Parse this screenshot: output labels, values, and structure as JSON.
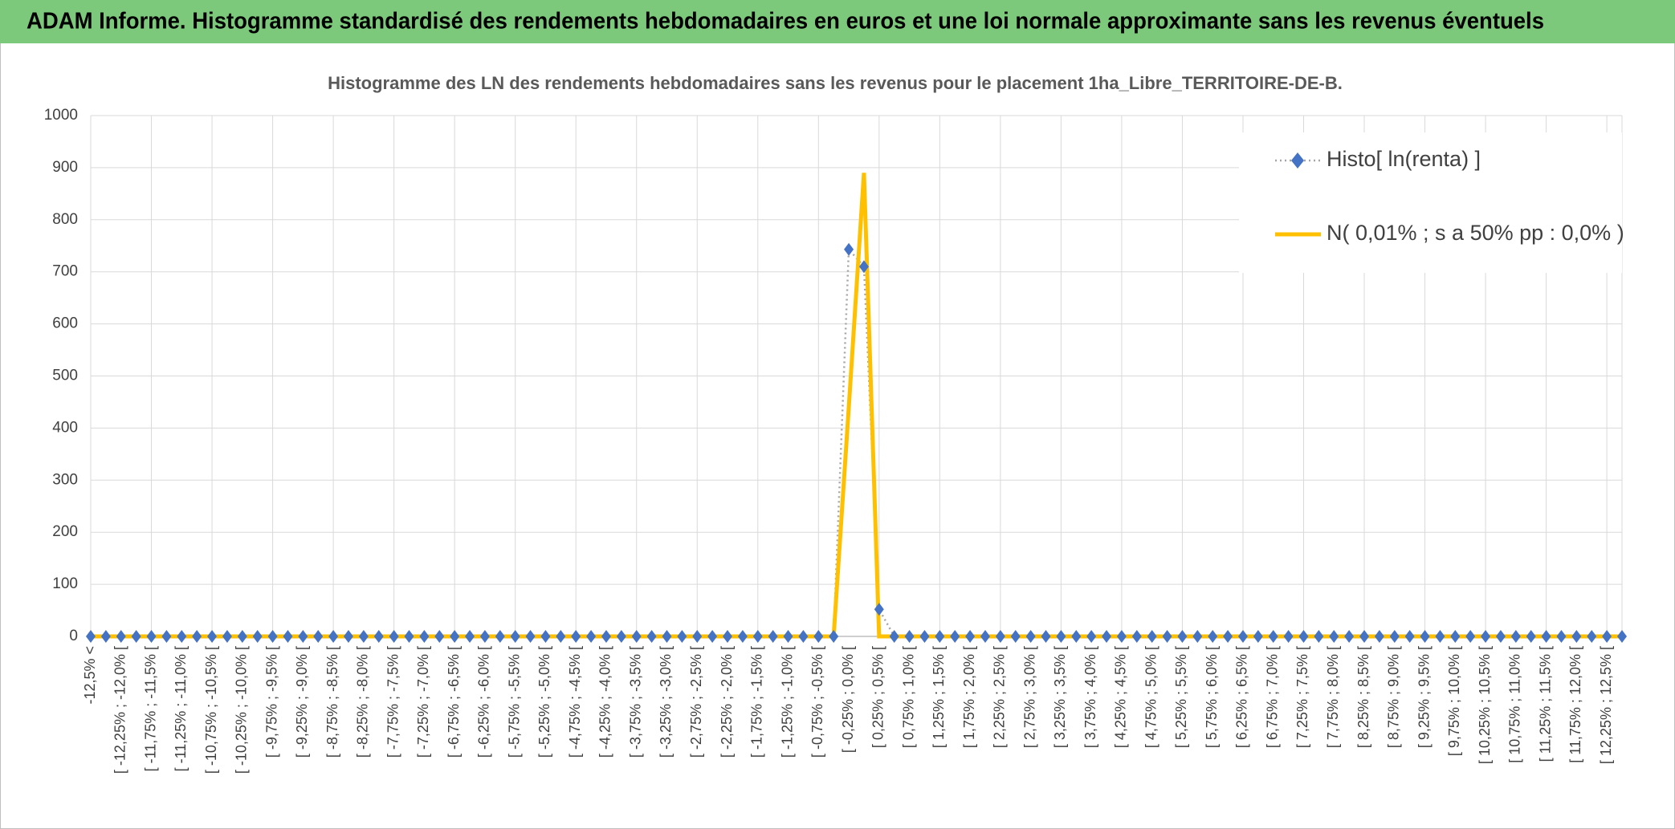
{
  "header": {
    "title": "ADAM Informe. Histogramme standardisé des rendements hebdomadaires en euros et une loi normale approximante sans les revenus éventuels"
  },
  "chart_data": {
    "type": "line",
    "title": "Histogramme des LN des rendements hebdomadaires sans les revenus pour le placement 1ha_Libre_TERRITOIRE-DE-B.",
    "categories": [
      "-12,5% <",
      null,
      "[ -12,25% ; -12,0% [",
      null,
      "[ -11,75% ; -11,5% [",
      null,
      "[ -11,25% ; -11,0% [",
      null,
      "[ -10,75% ; -10,5% [",
      null,
      "[ -10,25% ; -10,0% [",
      null,
      "[ -9,75% ; -9,5% [",
      null,
      "[ -9,25% ; -9,0% [",
      null,
      "[ -8,75% ; -8,5% [",
      null,
      "[ -8,25% ; -8,0% [",
      null,
      "[ -7,75% ; -7,5% [",
      null,
      "[ -7,25% ; -7,0% [",
      null,
      "[ -6,75% ; -6,5% [",
      null,
      "[ -6,25% ; -6,0% [",
      null,
      "[ -5,75% ; -5,5% [",
      null,
      "[ -5,25% ; -5,0% [",
      null,
      "[ -4,75% ; -4,5% [",
      null,
      "[ -4,25% ; -4,0% [",
      null,
      "[ -3,75% ; -3,5% [",
      null,
      "[ -3,25% ; -3,0% [",
      null,
      "[ -2,75% ; -2,5% [",
      null,
      "[ -2,25% ; -2,0% [",
      null,
      "[ -1,75% ; -1,5% [",
      null,
      "[ -1,25% ; -1,0% [",
      null,
      "[ -0,75% ; -0,5% [",
      null,
      "[ -0,25% ; 0,0% [",
      null,
      "[ 0,25% ; 0,5% [",
      null,
      "[ 0,75% ; 1,0% [",
      null,
      "[ 1,25% ; 1,5% [",
      null,
      "[ 1,75% ; 2,0% [",
      null,
      "[ 2,25% ; 2,5% [",
      null,
      "[ 2,75% ; 3,0% [",
      null,
      "[ 3,25% ; 3,5% [",
      null,
      "[ 3,75% ; 4,0% [",
      null,
      "[ 4,25% ; 4,5% [",
      null,
      "[ 4,75% ; 5,0% [",
      null,
      "[ 5,25% ; 5,5% [",
      null,
      "[ 5,75% ; 6,0% [",
      null,
      "[ 6,25% ; 6,5% [",
      null,
      "[ 6,75% ; 7,0% [",
      null,
      "[ 7,25% ; 7,5% [",
      null,
      "[ 7,75% ; 8,0% [",
      null,
      "[ 8,25% ; 8,5% [",
      null,
      "[ 8,75% ; 9,0% [",
      null,
      "[ 9,25% ; 9,5% [",
      null,
      "[ 9,75% ; 10,0% [",
      null,
      "[ 10,25% ; 10,5% [",
      null,
      "[ 10,75% ; 11,0% [",
      null,
      "[ 11,25% ; 11,5% [",
      null,
      "[ 11,75% ; 12,0% [",
      null,
      "[ 12,25% ; 12,5% [",
      null
    ],
    "series": [
      {
        "name": "Histo[ ln(renta) ]",
        "color": "#4472c4",
        "values": [
          0,
          0,
          0,
          0,
          0,
          0,
          0,
          0,
          0,
          0,
          0,
          0,
          0,
          0,
          0,
          0,
          0,
          0,
          0,
          0,
          0,
          0,
          0,
          0,
          0,
          0,
          0,
          0,
          0,
          0,
          0,
          0,
          0,
          0,
          0,
          0,
          0,
          0,
          0,
          0,
          0,
          0,
          0,
          0,
          0,
          0,
          0,
          0,
          0,
          0,
          743,
          710,
          52,
          0,
          0,
          0,
          0,
          0,
          0,
          0,
          0,
          0,
          0,
          0,
          0,
          0,
          0,
          0,
          0,
          0,
          0,
          0,
          0,
          0,
          0,
          0,
          0,
          0,
          0,
          0,
          0,
          0,
          0,
          0,
          0,
          0,
          0,
          0,
          0,
          0,
          0,
          0,
          0,
          0,
          0,
          0,
          0,
          0,
          0,
          0,
          0,
          0
        ]
      },
      {
        "name": "N( 0,01% ; s a 50% pp : 0,0% )",
        "color": "#ffc000",
        "values": [
          0,
          0,
          0,
          0,
          0,
          0,
          0,
          0,
          0,
          0,
          0,
          0,
          0,
          0,
          0,
          0,
          0,
          0,
          0,
          0,
          0,
          0,
          0,
          0,
          0,
          0,
          0,
          0,
          0,
          0,
          0,
          0,
          0,
          0,
          0,
          0,
          0,
          0,
          0,
          0,
          0,
          0,
          0,
          0,
          0,
          0,
          0,
          0,
          0,
          0,
          440,
          890,
          0,
          0,
          0,
          0,
          0,
          0,
          0,
          0,
          0,
          0,
          0,
          0,
          0,
          0,
          0,
          0,
          0,
          0,
          0,
          0,
          0,
          0,
          0,
          0,
          0,
          0,
          0,
          0,
          0,
          0,
          0,
          0,
          0,
          0,
          0,
          0,
          0,
          0,
          0,
          0,
          0,
          0,
          0,
          0,
          0,
          0,
          0,
          0,
          0,
          0
        ]
      }
    ],
    "ylim": [
      0,
      1000
    ],
    "yticks": [
      0,
      100,
      200,
      300,
      400,
      500,
      600,
      700,
      800,
      900,
      1000
    ],
    "grid": true,
    "legend": "top-right"
  }
}
